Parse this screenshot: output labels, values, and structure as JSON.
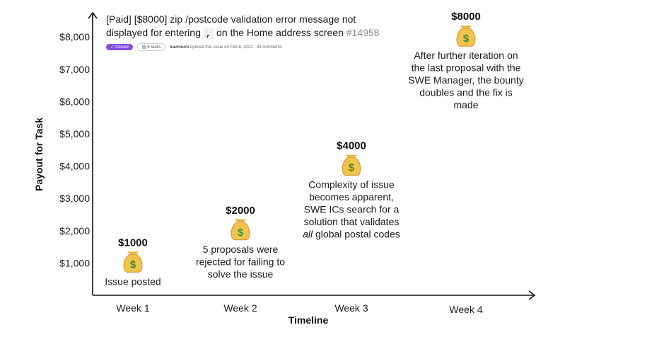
{
  "chart_data": {
    "type": "scatter",
    "title": "",
    "xlabel": "Timeline",
    "ylabel": "Payout for Task",
    "categories": [
      "Week 1",
      "Week 2",
      "Week 3",
      "Week 4"
    ],
    "ylim": [
      0,
      9000
    ],
    "yticks": [
      1000,
      2000,
      3000,
      4000,
      5000,
      6000,
      7000,
      8000
    ],
    "ytick_labels": [
      "$1,000",
      "$2,000",
      "$3,000",
      "$4,000",
      "$5,000",
      "$6,000",
      "$7,000",
      "$8,000"
    ],
    "grid": false,
    "marker": "money-bag",
    "points": [
      {
        "category": "Week 1",
        "value": 1000,
        "label": "$1000",
        "note_position": "below",
        "note_lines": [
          [
            {
              "text": "Issue posted"
            }
          ]
        ]
      },
      {
        "category": "Week 2",
        "value": 2000,
        "label": "$2000",
        "note_position": "below",
        "note_lines": [
          [
            {
              "text": "5 proposals were"
            }
          ],
          [
            {
              "text": "rejected for failing to"
            }
          ],
          [
            {
              "text": "solve the issue"
            }
          ]
        ]
      },
      {
        "category": "Week 3",
        "value": 4000,
        "label": "$4000",
        "note_position": "below",
        "note_lines": [
          [
            {
              "text": "Complexity of issue"
            }
          ],
          [
            {
              "text": "becomes apparent,"
            }
          ],
          [
            {
              "text": "SWE ICs search for a"
            }
          ],
          [
            {
              "text": "solution that validates"
            }
          ],
          [
            {
              "text": "all",
              "italic": true
            },
            {
              "text": " global postal codes"
            }
          ]
        ]
      },
      {
        "category": "Week 4",
        "value": 8000,
        "label": "$8000",
        "note_position": "below",
        "note_lines": [
          [
            {
              "text": "After further iteration on"
            }
          ],
          [
            {
              "text": "the last proposal with the"
            }
          ],
          [
            {
              "text": "SWE Manager, the bounty"
            }
          ],
          [
            {
              "text": "doubles and the fix is"
            }
          ],
          [
            {
              "text": "made"
            }
          ]
        ]
      }
    ],
    "annotation": {
      "title_line1": "[Paid] [$8000] zip /postcode validation error message not",
      "title_line2_before": "displayed for entering ",
      "title_line2_code": ",",
      "title_line2_after": " on the Home address screen ",
      "issue_number": "#14958",
      "status_badge": "Closed",
      "tasks_badge": "6 tasks",
      "author": "kavimuru",
      "meta_text": "opened this issue on Feb 8, 2023 · 93 comments"
    }
  },
  "colors": {
    "axis": "#111111",
    "text": "#1b1b1b",
    "closed_badge": "#8250df",
    "bag": "#f3c34a",
    "dollar": "#3f8e3c"
  }
}
